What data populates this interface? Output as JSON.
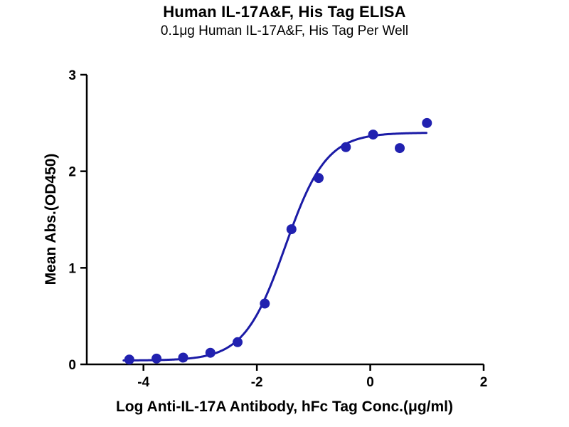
{
  "chart_data": {
    "type": "scatter",
    "title": "Human IL-17A&F, His Tag ELISA",
    "subtitle": "0.1μg Human IL-17A&F, His Tag Per Well",
    "xlabel": "Log Anti-IL-17A Antibody, hFc Tag Conc.(μg/ml)",
    "ylabel": "Mean Abs.(OD450)",
    "xlim": [
      -5,
      2
    ],
    "ylim": [
      0,
      3
    ],
    "xtick_values": [
      -4,
      -2,
      0,
      2
    ],
    "xtick_labels": [
      "-4",
      "-2",
      "0",
      "2"
    ],
    "ytick_values": [
      0,
      1,
      2,
      3
    ],
    "ytick_labels": [
      "0",
      "1",
      "2",
      "3"
    ],
    "grid": "off",
    "legend": "none",
    "points": {
      "x": [
        -4.25,
        -3.77,
        -3.3,
        -2.82,
        -2.34,
        -1.86,
        -1.39,
        -0.91,
        -0.43,
        0.05,
        0.52,
        1.0
      ],
      "y": [
        0.05,
        0.06,
        0.07,
        0.12,
        0.23,
        0.63,
        1.4,
        1.93,
        2.25,
        2.38,
        2.24,
        2.5
      ]
    },
    "fit_curve": {
      "model": "4PL-sigmoid",
      "bottom": 0.04,
      "top": 2.4,
      "logEC50": -1.5,
      "hill": 1.2,
      "x_start": -4.35,
      "x_end": 1.0
    },
    "colors": {
      "points": "#2121b0",
      "curve": "#1b1ba6",
      "axis": "#000000",
      "text": "#000000"
    }
  }
}
